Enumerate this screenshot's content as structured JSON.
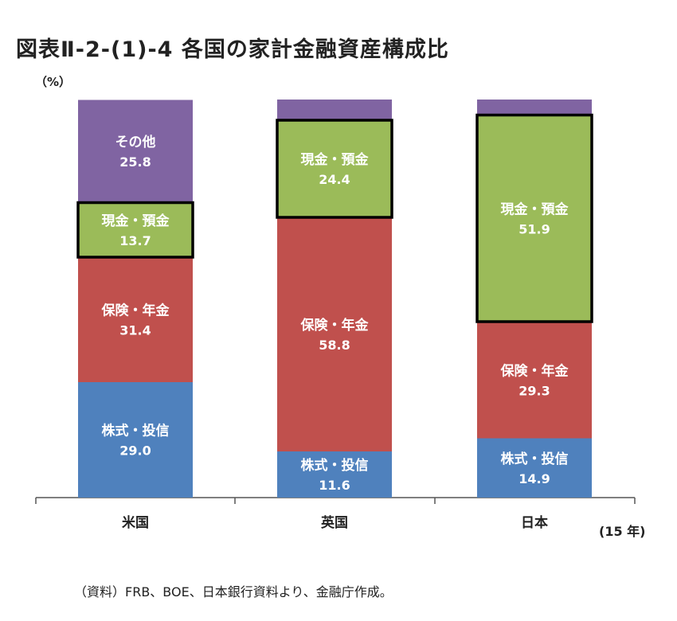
{
  "title": "図表Ⅱ-2-(1)-4 各国の家計金融資産構成比",
  "unit_label": "（%）",
  "period_label": "(15 年)",
  "source_note": "（資料）FRB、BOE、日本銀行資料より、金融庁作成。",
  "chart_data": {
    "type": "bar",
    "stacked": true,
    "ylim": [
      0,
      100
    ],
    "categories": [
      "米国",
      "英国",
      "日本"
    ],
    "series": [
      {
        "name": "株式・投信",
        "color": "#4f81bd",
        "values": [
          29.0,
          11.6,
          14.9
        ],
        "value_labels": [
          "29.0",
          "11.6",
          "14.9"
        ]
      },
      {
        "name": "保険・年金",
        "color": "#c0504d",
        "values": [
          31.4,
          58.8,
          29.3
        ],
        "value_labels": [
          "31.4",
          "58.8",
          "29.3"
        ]
      },
      {
        "name": "現金・預金",
        "color": "#9bbb59",
        "values": [
          13.7,
          24.4,
          51.9
        ],
        "value_labels": [
          "13.7",
          "24.4",
          "51.9"
        ],
        "highlighted": true
      },
      {
        "name": "その他",
        "color": "#8064a2",
        "values": [
          25.8,
          5.2,
          3.9
        ],
        "value_labels": [
          "25.8",
          "",
          ""
        ]
      }
    ]
  }
}
